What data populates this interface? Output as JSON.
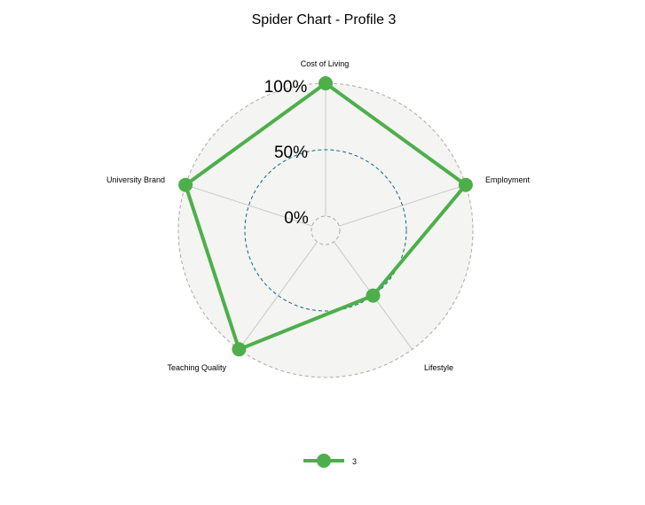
{
  "chart_data": {
    "type": "radar",
    "title": "Spider Chart - Profile 3",
    "axes": [
      "Cost of Living",
      "Employment",
      "Lifestyle",
      "Teaching Quality",
      "University Brand"
    ],
    "grid_labels": [
      "0%",
      "50%",
      "100%"
    ],
    "grid_values": [
      0,
      50,
      100
    ],
    "range": [
      0,
      100
    ],
    "series": [
      {
        "name": "3",
        "values": [
          100,
          100,
          50,
          100,
          100
        ]
      }
    ],
    "legend_position": "bottom",
    "colors": {
      "series": "#4daf4a",
      "panel_fill": "#f4f4f2",
      "outer_grid": "#aaaaaa",
      "mid_grid": "#0b6a86",
      "inner_grid": "#aaaaaa",
      "spokes": "#c8c8c8"
    }
  }
}
